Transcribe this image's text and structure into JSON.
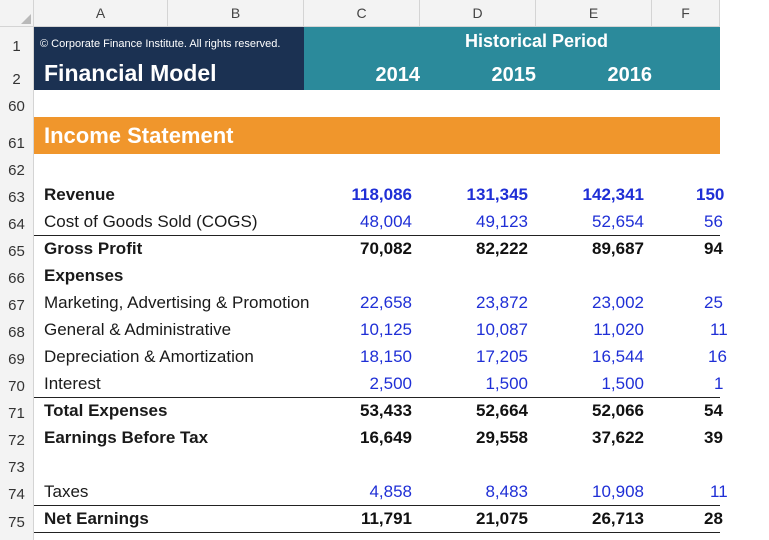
{
  "columns": [
    "A",
    "B",
    "C",
    "D",
    "E",
    "F"
  ],
  "header": {
    "copyright": "© Corporate Finance Institute. All rights reserved.",
    "title": "Financial Model",
    "period_label": "Historical Period",
    "years": [
      "2014",
      "2015",
      "2016"
    ]
  },
  "section": {
    "title": "Income Statement"
  },
  "row_numbers": {
    "r1": "1",
    "r2": "2",
    "r60": "60",
    "r61": "61",
    "r62": "62",
    "r63": "63",
    "r64": "64",
    "r65": "65",
    "r66": "66",
    "r67": "67",
    "r68": "68",
    "r69": "69",
    "r70": "70",
    "r71": "71",
    "r72": "72",
    "r73": "73",
    "r74": "74",
    "r75": "75"
  },
  "rows": {
    "revenue": {
      "label": "Revenue",
      "values": [
        "118,086",
        "131,345",
        "142,341",
        "150"
      ]
    },
    "cogs": {
      "label": "Cost of Goods Sold (COGS)",
      "values": [
        "48,004",
        "49,123",
        "52,654",
        "56"
      ]
    },
    "gross_profit": {
      "label": "Gross Profit",
      "values": [
        "70,082",
        "82,222",
        "89,687",
        "94"
      ]
    },
    "expenses": {
      "label": "Expenses"
    },
    "marketing": {
      "label": "Marketing, Advertising & Promotion",
      "values": [
        "22,658",
        "23,872",
        "23,002",
        "25"
      ]
    },
    "general_admin": {
      "label": "General & Administrative",
      "values": [
        "10,125",
        "10,087",
        "11,020",
        "11"
      ]
    },
    "depreciation": {
      "label": "Depreciation & Amortization",
      "values": [
        "18,150",
        "17,205",
        "16,544",
        "16"
      ]
    },
    "interest": {
      "label": "Interest",
      "values": [
        "2,500",
        "1,500",
        "1,500",
        "1"
      ]
    },
    "total_expenses": {
      "label": "Total Expenses",
      "values": [
        "53,433",
        "52,664",
        "52,066",
        "54"
      ]
    },
    "ebt": {
      "label": "Earnings Before Tax",
      "values": [
        "16,649",
        "29,558",
        "37,622",
        "39"
      ]
    },
    "taxes": {
      "label": "Taxes",
      "values": [
        "4,858",
        "8,483",
        "10,908",
        "11"
      ]
    },
    "net_earnings": {
      "label": "Net Earnings",
      "values": [
        "11,791",
        "21,075",
        "26,713",
        "28"
      ]
    }
  },
  "colors": {
    "navy": "#1b3152",
    "teal": "#2b8a9b",
    "orange": "#f0962c",
    "input_blue": "#1f2fd6",
    "grid_header": "#f3f3f3"
  }
}
